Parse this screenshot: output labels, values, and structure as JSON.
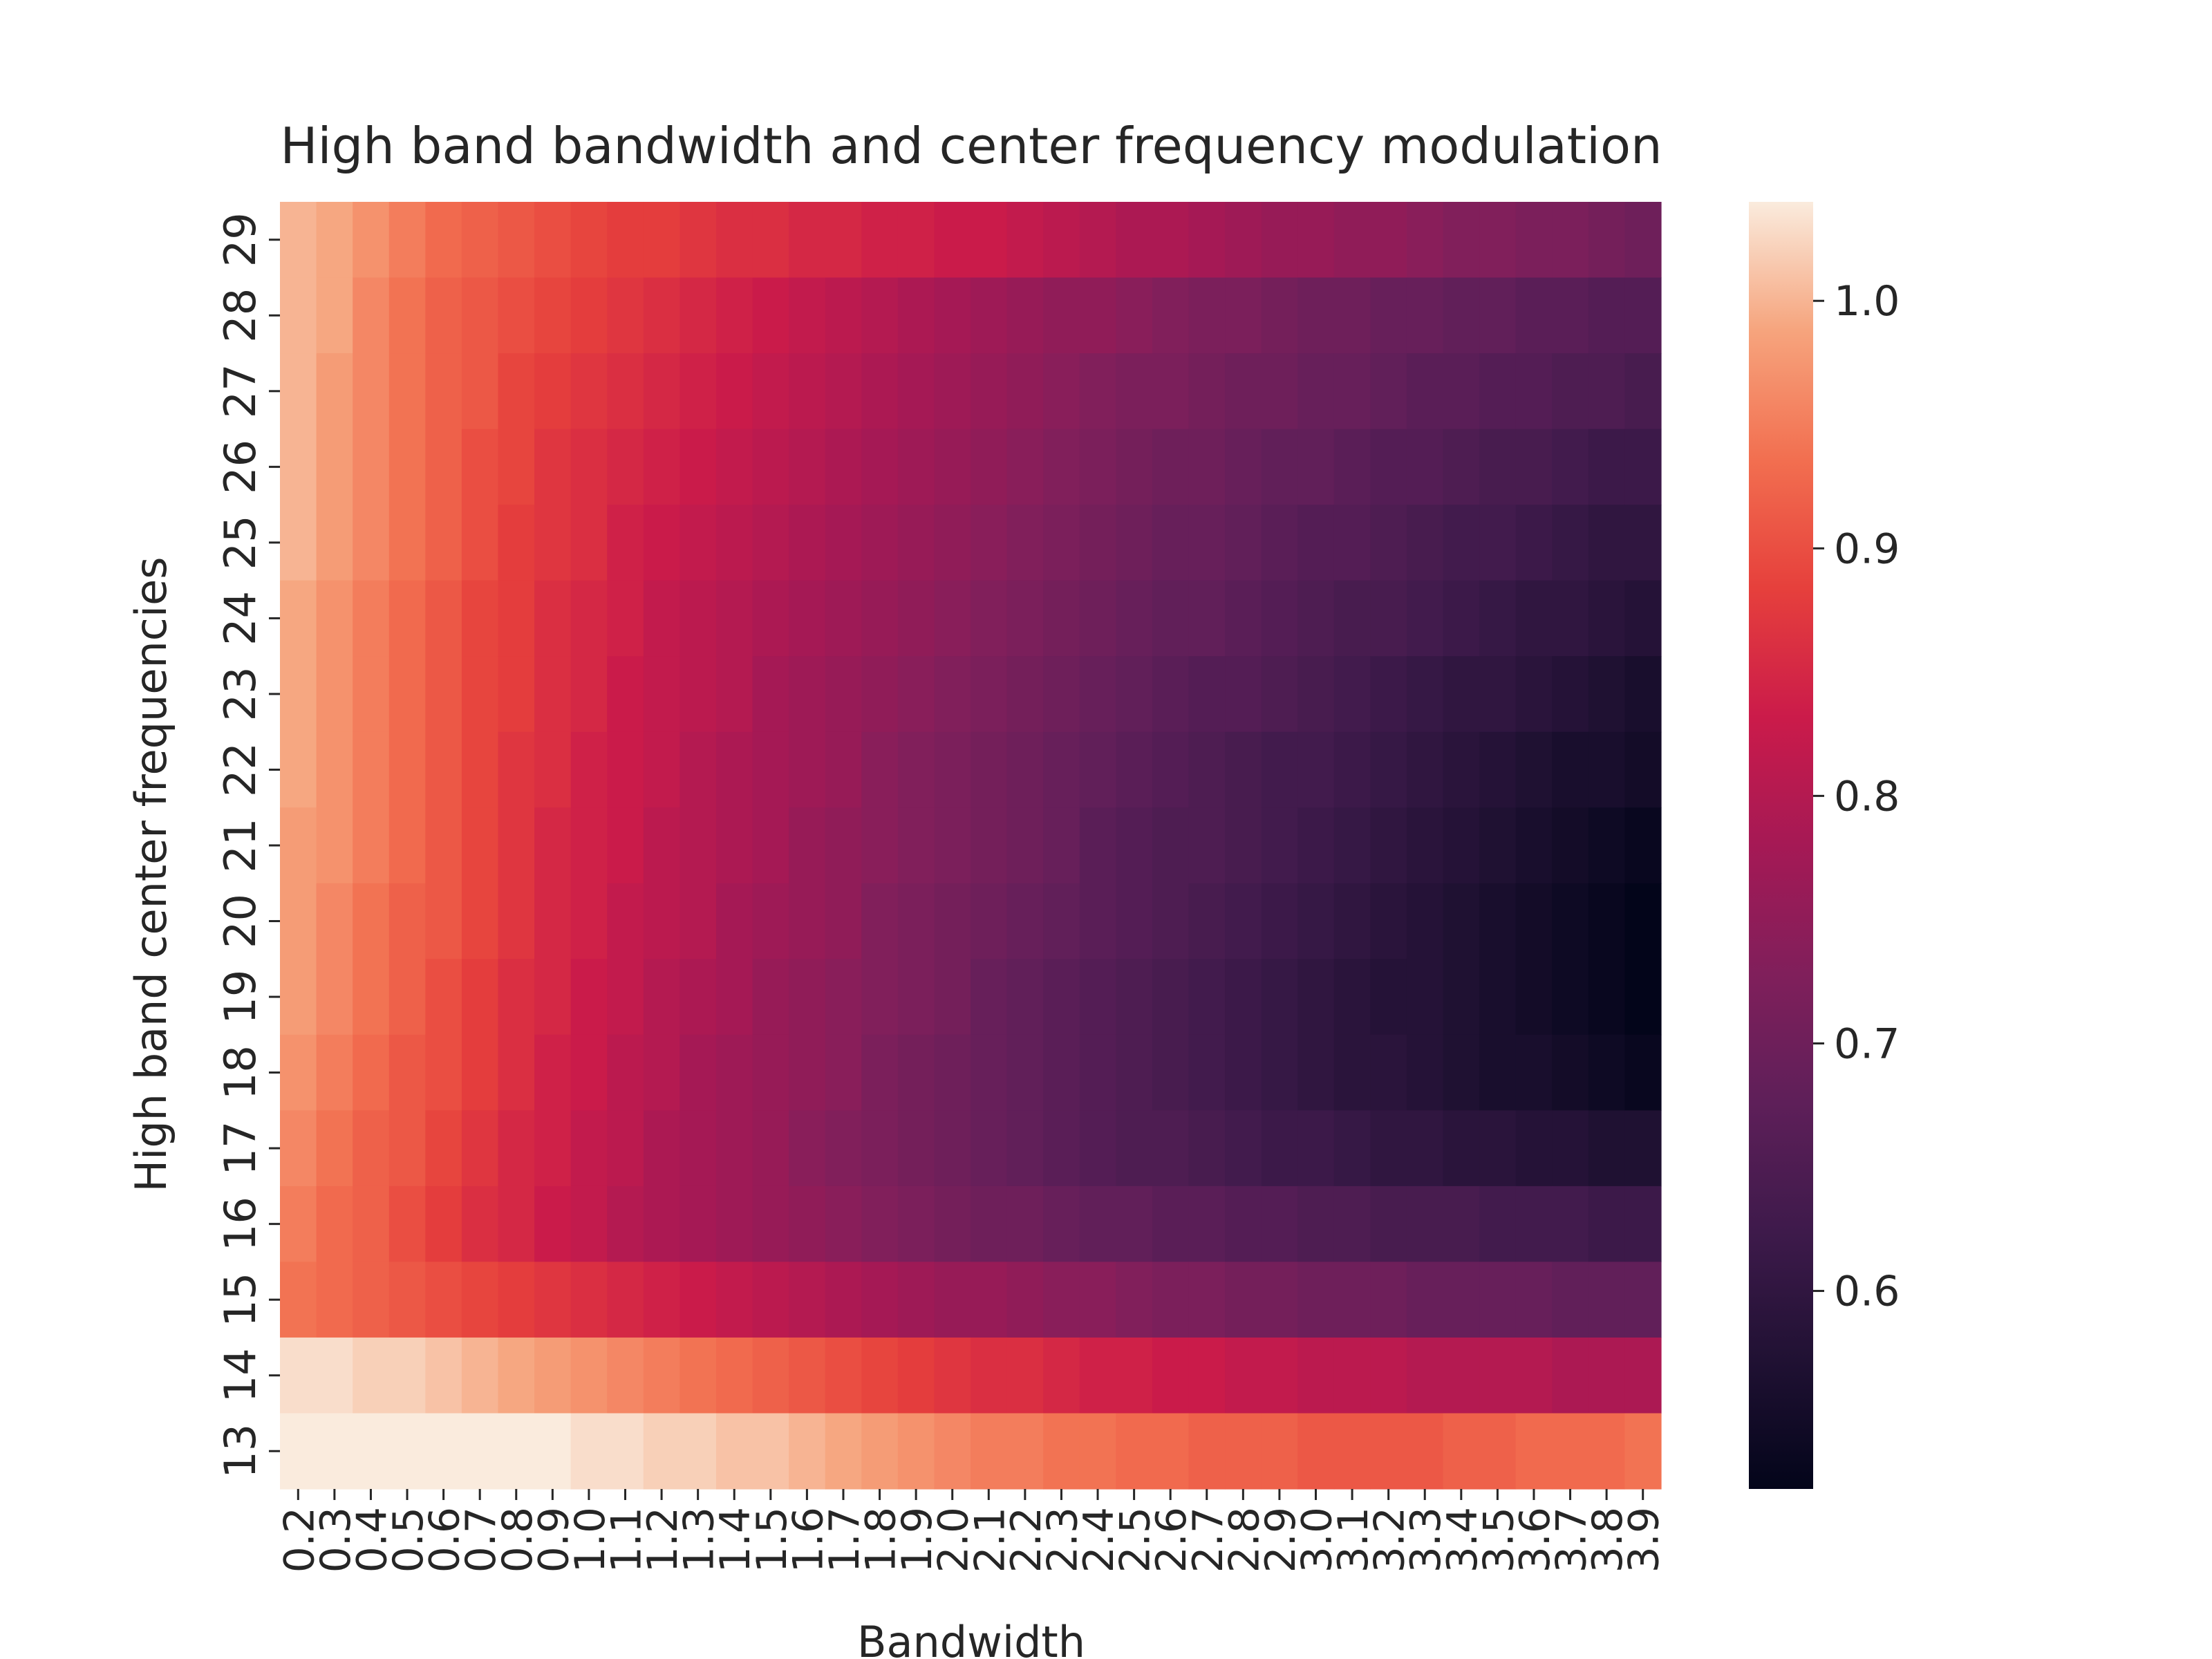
{
  "chart_data": {
    "type": "heatmap",
    "title": "High band bandwidth and center frequency modulation",
    "xlabel": "Bandwidth",
    "ylabel": "High band center frequencies",
    "x_tick_labels": [
      "0.2",
      "0.3",
      "0.4",
      "0.5",
      "0.6",
      "0.7",
      "0.8",
      "0.9",
      "1.0",
      "1.1",
      "1.2",
      "1.3",
      "1.4",
      "1.5",
      "1.6",
      "1.7",
      "1.8",
      "1.9",
      "2.0",
      "2.1",
      "2.2",
      "2.3",
      "2.4",
      "2.5",
      "2.6",
      "2.7",
      "2.8",
      "2.9",
      "3.0",
      "3.1",
      "3.2",
      "3.3",
      "3.4",
      "3.5",
      "3.6",
      "3.7",
      "3.8",
      "3.9"
    ],
    "y_tick_labels": [
      "29",
      "28",
      "27",
      "26",
      "25",
      "24",
      "23",
      "22",
      "21",
      "20",
      "19",
      "18",
      "17",
      "16",
      "15",
      "14",
      "13"
    ],
    "colorbar": {
      "min": 0.52,
      "max": 1.04,
      "ticks": [
        "0.6",
        "0.7",
        "0.8",
        "0.9",
        "1.0"
      ],
      "colormap": "rocket"
    },
    "values_note_rows_top_to_bottom": "y=29 first, y=13 last; columns follow x_tick_labels",
    "values": [
      [
        1.0,
        0.99,
        0.97,
        0.95,
        0.93,
        0.92,
        0.91,
        0.9,
        0.89,
        0.88,
        0.88,
        0.87,
        0.86,
        0.86,
        0.85,
        0.85,
        0.84,
        0.84,
        0.83,
        0.83,
        0.82,
        0.81,
        0.8,
        0.79,
        0.79,
        0.78,
        0.77,
        0.76,
        0.76,
        0.75,
        0.75,
        0.74,
        0.73,
        0.73,
        0.72,
        0.72,
        0.71,
        0.7
      ],
      [
        1.0,
        0.99,
        0.96,
        0.94,
        0.92,
        0.91,
        0.9,
        0.89,
        0.88,
        0.87,
        0.86,
        0.85,
        0.84,
        0.83,
        0.82,
        0.81,
        0.8,
        0.79,
        0.78,
        0.77,
        0.76,
        0.75,
        0.75,
        0.74,
        0.73,
        0.72,
        0.72,
        0.71,
        0.7,
        0.7,
        0.69,
        0.69,
        0.68,
        0.68,
        0.67,
        0.67,
        0.66,
        0.66
      ],
      [
        1.0,
        0.98,
        0.96,
        0.94,
        0.92,
        0.91,
        0.89,
        0.88,
        0.87,
        0.86,
        0.85,
        0.84,
        0.83,
        0.82,
        0.81,
        0.8,
        0.79,
        0.78,
        0.77,
        0.76,
        0.75,
        0.74,
        0.73,
        0.72,
        0.72,
        0.71,
        0.7,
        0.7,
        0.69,
        0.69,
        0.68,
        0.67,
        0.67,
        0.66,
        0.66,
        0.65,
        0.65,
        0.64
      ],
      [
        1.0,
        0.98,
        0.96,
        0.94,
        0.92,
        0.9,
        0.89,
        0.87,
        0.86,
        0.85,
        0.84,
        0.83,
        0.82,
        0.81,
        0.8,
        0.79,
        0.78,
        0.77,
        0.76,
        0.75,
        0.74,
        0.73,
        0.72,
        0.71,
        0.7,
        0.7,
        0.69,
        0.68,
        0.68,
        0.67,
        0.66,
        0.66,
        0.65,
        0.64,
        0.64,
        0.63,
        0.62,
        0.62
      ],
      [
        1.0,
        0.98,
        0.96,
        0.94,
        0.92,
        0.9,
        0.88,
        0.87,
        0.86,
        0.84,
        0.83,
        0.82,
        0.81,
        0.8,
        0.79,
        0.78,
        0.77,
        0.76,
        0.75,
        0.74,
        0.73,
        0.72,
        0.71,
        0.7,
        0.69,
        0.69,
        0.68,
        0.67,
        0.66,
        0.66,
        0.65,
        0.64,
        0.63,
        0.63,
        0.62,
        0.61,
        0.6,
        0.6
      ],
      [
        0.99,
        0.97,
        0.95,
        0.93,
        0.91,
        0.89,
        0.88,
        0.86,
        0.85,
        0.84,
        0.82,
        0.81,
        0.8,
        0.79,
        0.78,
        0.77,
        0.76,
        0.75,
        0.74,
        0.73,
        0.72,
        0.71,
        0.7,
        0.69,
        0.68,
        0.68,
        0.67,
        0.66,
        0.65,
        0.64,
        0.64,
        0.63,
        0.62,
        0.61,
        0.6,
        0.6,
        0.59,
        0.58
      ],
      [
        0.99,
        0.97,
        0.95,
        0.93,
        0.91,
        0.89,
        0.88,
        0.86,
        0.85,
        0.83,
        0.82,
        0.81,
        0.8,
        0.78,
        0.77,
        0.76,
        0.75,
        0.74,
        0.73,
        0.72,
        0.71,
        0.7,
        0.69,
        0.68,
        0.67,
        0.66,
        0.66,
        0.65,
        0.64,
        0.63,
        0.62,
        0.61,
        0.6,
        0.6,
        0.59,
        0.58,
        0.57,
        0.56
      ],
      [
        0.99,
        0.97,
        0.95,
        0.93,
        0.91,
        0.89,
        0.87,
        0.86,
        0.84,
        0.83,
        0.82,
        0.8,
        0.79,
        0.78,
        0.77,
        0.76,
        0.74,
        0.73,
        0.72,
        0.71,
        0.7,
        0.69,
        0.68,
        0.67,
        0.66,
        0.65,
        0.64,
        0.63,
        0.63,
        0.62,
        0.61,
        0.6,
        0.59,
        0.58,
        0.57,
        0.56,
        0.56,
        0.55
      ],
      [
        0.98,
        0.97,
        0.95,
        0.93,
        0.91,
        0.89,
        0.87,
        0.85,
        0.84,
        0.83,
        0.81,
        0.8,
        0.79,
        0.78,
        0.76,
        0.75,
        0.74,
        0.73,
        0.72,
        0.71,
        0.7,
        0.69,
        0.67,
        0.66,
        0.65,
        0.65,
        0.64,
        0.63,
        0.62,
        0.61,
        0.6,
        0.59,
        0.58,
        0.57,
        0.56,
        0.55,
        0.54,
        0.53
      ],
      [
        0.98,
        0.96,
        0.94,
        0.92,
        0.91,
        0.89,
        0.87,
        0.85,
        0.84,
        0.82,
        0.81,
        0.8,
        0.78,
        0.77,
        0.76,
        0.75,
        0.73,
        0.72,
        0.71,
        0.7,
        0.69,
        0.68,
        0.67,
        0.66,
        0.65,
        0.64,
        0.63,
        0.62,
        0.61,
        0.6,
        0.59,
        0.58,
        0.57,
        0.56,
        0.55,
        0.54,
        0.53,
        0.52
      ],
      [
        0.98,
        0.96,
        0.94,
        0.92,
        0.9,
        0.88,
        0.86,
        0.85,
        0.83,
        0.82,
        0.8,
        0.79,
        0.78,
        0.76,
        0.75,
        0.74,
        0.73,
        0.72,
        0.71,
        0.69,
        0.68,
        0.67,
        0.66,
        0.65,
        0.64,
        0.63,
        0.62,
        0.61,
        0.6,
        0.59,
        0.58,
        0.58,
        0.57,
        0.56,
        0.55,
        0.54,
        0.53,
        0.52
      ],
      [
        0.97,
        0.95,
        0.93,
        0.91,
        0.9,
        0.88,
        0.86,
        0.84,
        0.83,
        0.81,
        0.8,
        0.78,
        0.77,
        0.76,
        0.75,
        0.74,
        0.72,
        0.71,
        0.7,
        0.69,
        0.68,
        0.67,
        0.66,
        0.65,
        0.64,
        0.63,
        0.62,
        0.61,
        0.6,
        0.59,
        0.59,
        0.58,
        0.57,
        0.56,
        0.56,
        0.55,
        0.54,
        0.53
      ],
      [
        0.96,
        0.94,
        0.92,
        0.91,
        0.89,
        0.87,
        0.85,
        0.84,
        0.82,
        0.81,
        0.79,
        0.78,
        0.77,
        0.76,
        0.74,
        0.73,
        0.72,
        0.71,
        0.7,
        0.69,
        0.68,
        0.67,
        0.66,
        0.65,
        0.65,
        0.64,
        0.63,
        0.62,
        0.62,
        0.61,
        0.6,
        0.6,
        0.59,
        0.59,
        0.58,
        0.58,
        0.57,
        0.57
      ],
      [
        0.95,
        0.93,
        0.92,
        0.9,
        0.88,
        0.86,
        0.85,
        0.83,
        0.82,
        0.8,
        0.79,
        0.78,
        0.77,
        0.76,
        0.75,
        0.74,
        0.73,
        0.72,
        0.71,
        0.7,
        0.7,
        0.69,
        0.68,
        0.68,
        0.67,
        0.67,
        0.66,
        0.66,
        0.65,
        0.65,
        0.64,
        0.64,
        0.64,
        0.63,
        0.63,
        0.63,
        0.62,
        0.62
      ],
      [
        0.94,
        0.93,
        0.92,
        0.91,
        0.9,
        0.89,
        0.88,
        0.87,
        0.86,
        0.85,
        0.84,
        0.83,
        0.82,
        0.81,
        0.8,
        0.79,
        0.78,
        0.77,
        0.76,
        0.76,
        0.75,
        0.74,
        0.74,
        0.73,
        0.72,
        0.72,
        0.71,
        0.71,
        0.7,
        0.7,
        0.7,
        0.69,
        0.69,
        0.69,
        0.69,
        0.68,
        0.68,
        0.68
      ],
      [
        1.03,
        1.03,
        1.02,
        1.02,
        1.01,
        1.0,
        0.99,
        0.98,
        0.97,
        0.96,
        0.95,
        0.94,
        0.93,
        0.92,
        0.91,
        0.9,
        0.89,
        0.88,
        0.87,
        0.86,
        0.86,
        0.85,
        0.84,
        0.84,
        0.83,
        0.83,
        0.82,
        0.82,
        0.81,
        0.81,
        0.81,
        0.8,
        0.8,
        0.8,
        0.8,
        0.79,
        0.79,
        0.79
      ],
      [
        1.04,
        1.04,
        1.04,
        1.04,
        1.04,
        1.04,
        1.04,
        1.04,
        1.03,
        1.03,
        1.02,
        1.02,
        1.01,
        1.01,
        1.0,
        0.99,
        0.98,
        0.97,
        0.96,
        0.95,
        0.95,
        0.94,
        0.94,
        0.93,
        0.93,
        0.92,
        0.92,
        0.92,
        0.91,
        0.91,
        0.91,
        0.91,
        0.92,
        0.92,
        0.93,
        0.93,
        0.93,
        0.94
      ]
    ]
  }
}
